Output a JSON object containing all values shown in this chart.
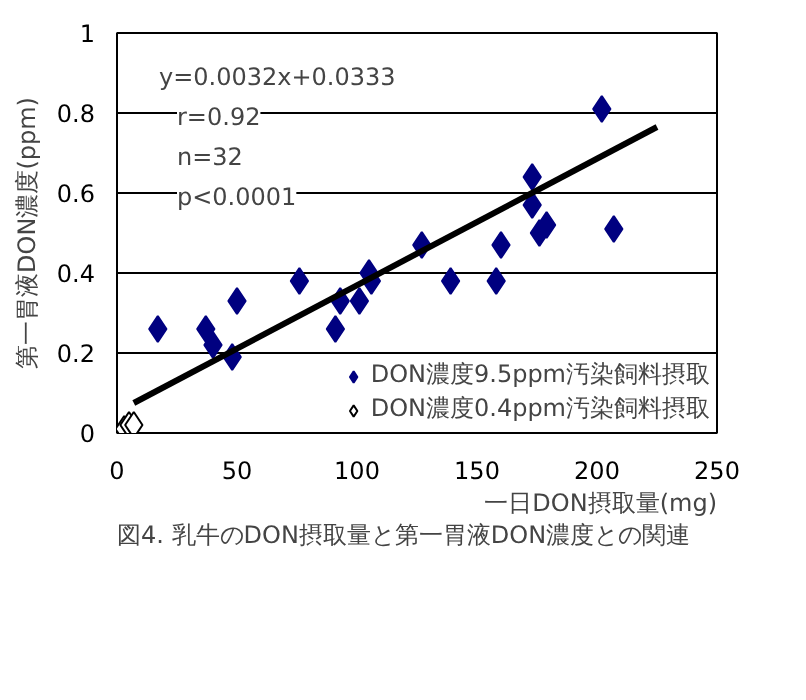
{
  "chart_data": {
    "type": "scatter",
    "title": "図4. 乳牛のDON摂取量と第一胃液DON濃度との関連",
    "xlabel": "一日DON摂取量(mg)",
    "ylabel": "第一胃液DON濃度(ppm)",
    "xlim": [
      0,
      250
    ],
    "xticks": [
      0,
      50,
      100,
      150,
      200,
      250
    ],
    "ylim": [
      0,
      1
    ],
    "yticks": [
      0,
      0.2,
      0.4,
      0.6,
      0.8,
      1
    ],
    "grid": "y",
    "marker": "diamond",
    "legend": "bottom right",
    "annotations": [
      "y=0.0032x+0.0333",
      "r=0.92",
      "n=32",
      "p<0.0001"
    ],
    "series": [
      {
        "name": "DON濃度9.5ppm汚染飼料摂取",
        "color": "#000080",
        "x": [
          17,
          37,
          40,
          48,
          50,
          76,
          91,
          93,
          101,
          105,
          106,
          127,
          139,
          158,
          160,
          173,
          173,
          176,
          179,
          202,
          207
        ],
        "values": [
          0.26,
          0.26,
          0.22,
          0.19,
          0.33,
          0.38,
          0.26,
          0.33,
          0.33,
          0.4,
          0.38,
          0.47,
          0.38,
          0.38,
          0.47,
          0.64,
          0.57,
          0.5,
          0.52,
          0.81,
          0.51
        ]
      },
      {
        "name": "DON濃度0.4ppm汚染飼料摂取",
        "color": "#ffffff",
        "x": [
          3,
          5,
          7
        ],
        "values": [
          0.01,
          0.02,
          0.02
        ]
      },
      {
        "type": "line",
        "marker": "none",
        "color": "#000000",
        "x": [
          7,
          225
        ],
        "values": [
          0.075,
          0.765
        ]
      }
    ]
  }
}
